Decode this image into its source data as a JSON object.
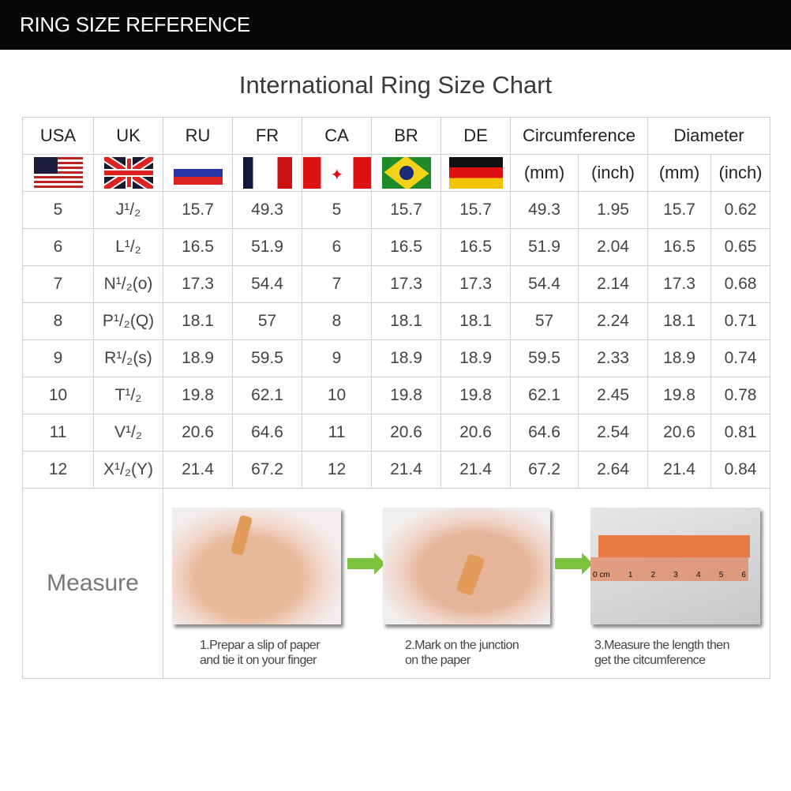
{
  "header": {
    "title": "RING SIZE REFERENCE"
  },
  "chart_title": "International Ring Size Chart",
  "columns": [
    "USA",
    "UK",
    "RU",
    "FR",
    "CA",
    "BR",
    "DE",
    "Circumference",
    "Diameter"
  ],
  "flags": [
    "us-flag-icon",
    "uk-flag-icon",
    "russia-flag-icon",
    "france-flag-icon",
    "canada-flag-icon",
    "brazil-flag-icon",
    "germany-flag-icon"
  ],
  "units": {
    "mm": "(mm)",
    "inch": "(inch)"
  },
  "rows": [
    {
      "usa": "5",
      "uk": "J¹/₂",
      "ru": "15.7",
      "fr": "49.3",
      "ca": "5",
      "br": "15.7",
      "de": "15.7",
      "circ_mm": "49.3",
      "circ_in": "1.95",
      "dia_mm": "15.7",
      "dia_in": "0.62"
    },
    {
      "usa": "6",
      "uk": "L¹/₂",
      "ru": "16.5",
      "fr": "51.9",
      "ca": "6",
      "br": "16.5",
      "de": "16.5",
      "circ_mm": "51.9",
      "circ_in": "2.04",
      "dia_mm": "16.5",
      "dia_in": "0.65"
    },
    {
      "usa": "7",
      "uk": "N¹/₂(o)",
      "ru": "17.3",
      "fr": "54.4",
      "ca": "7",
      "br": "17.3",
      "de": "17.3",
      "circ_mm": "54.4",
      "circ_in": "2.14",
      "dia_mm": "17.3",
      "dia_in": "0.68"
    },
    {
      "usa": "8",
      "uk": "P¹/₂(Q)",
      "ru": "18.1",
      "fr": "57",
      "ca": "8",
      "br": "18.1",
      "de": "18.1",
      "circ_mm": "57",
      "circ_in": "2.24",
      "dia_mm": "18.1",
      "dia_in": "0.71"
    },
    {
      "usa": "9",
      "uk": "R¹/₂(s)",
      "ru": "18.9",
      "fr": "59.5",
      "ca": "9",
      "br": "18.9",
      "de": "18.9",
      "circ_mm": "59.5",
      "circ_in": "2.33",
      "dia_mm": "18.9",
      "dia_in": "0.74"
    },
    {
      "usa": "10",
      "uk": "T¹/₂",
      "ru": "19.8",
      "fr": "62.1",
      "ca": "10",
      "br": "19.8",
      "de": "19.8",
      "circ_mm": "62.1",
      "circ_in": "2.45",
      "dia_mm": "19.8",
      "dia_in": "0.78"
    },
    {
      "usa": "11",
      "uk": "V¹/₂",
      "ru": "20.6",
      "fr": "64.6",
      "ca": "11",
      "br": "20.6",
      "de": "20.6",
      "circ_mm": "64.6",
      "circ_in": "2.54",
      "dia_mm": "20.6",
      "dia_in": "0.81"
    },
    {
      "usa": "12",
      "uk": "X¹/₂(Y)",
      "ru": "21.4",
      "fr": "67.2",
      "ca": "12",
      "br": "21.4",
      "de": "21.4",
      "circ_mm": "67.2",
      "circ_in": "2.64",
      "dia_mm": "21.4",
      "dia_in": "0.84"
    }
  ],
  "measure": {
    "label": "Measure",
    "steps": [
      {
        "line1": "1.Prepar a slip of paper",
        "line2": "and tie it on your finger"
      },
      {
        "line1": "2.Mark on the junction",
        "line2": "on the paper"
      },
      {
        "line1": "3.Measure the length then",
        "line2": "get the citcumference"
      }
    ],
    "ruler_labels": [
      "0 cm",
      "1",
      "2",
      "3",
      "4",
      "5",
      "6"
    ]
  },
  "colors": {
    "arrow": "#7cc23c",
    "header_bg": "#070707"
  }
}
